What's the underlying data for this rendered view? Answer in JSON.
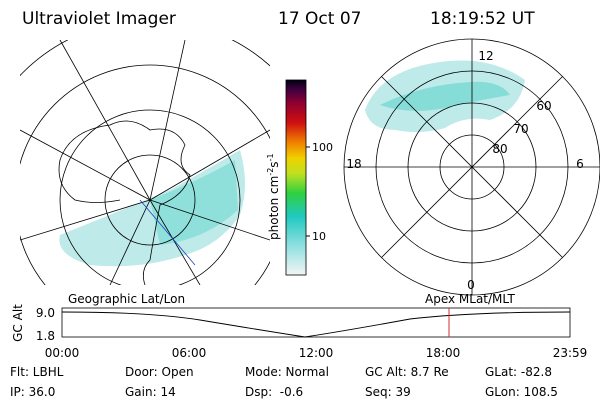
{
  "header": {
    "title": "Ultraviolet Imager",
    "date": "17 Oct 07",
    "time": "18:19:52 UT"
  },
  "colorbar": {
    "unit": [
      "photon cm",
      "-2",
      "s",
      "-1"
    ],
    "ticks": [
      "100",
      "10"
    ]
  },
  "polar": {
    "labels": [
      "12",
      "60",
      "70",
      "80",
      "18",
      "6",
      "0"
    ]
  },
  "orbit": {
    "left_label": "Geographic Lat/Lon",
    "right_label": "Apex MLat/MLT",
    "axis_title": "GC Alt",
    "y_ticks": [
      "9.0",
      "1.8"
    ],
    "time_ticks": [
      "00:00",
      "06:00",
      "12:00",
      "18:00",
      "23:59"
    ]
  },
  "info": {
    "rows": [
      [
        "Flt: LBHL",
        "Door: Open",
        "Mode: Normal",
        "GC Alt: 8.7 Re",
        "GLat: -82.8"
      ],
      [
        "IP: 36.0",
        "Gain: 14",
        "Dsp:  -0.6",
        "Seq: 39",
        "GLon: 108.5"
      ]
    ]
  }
}
